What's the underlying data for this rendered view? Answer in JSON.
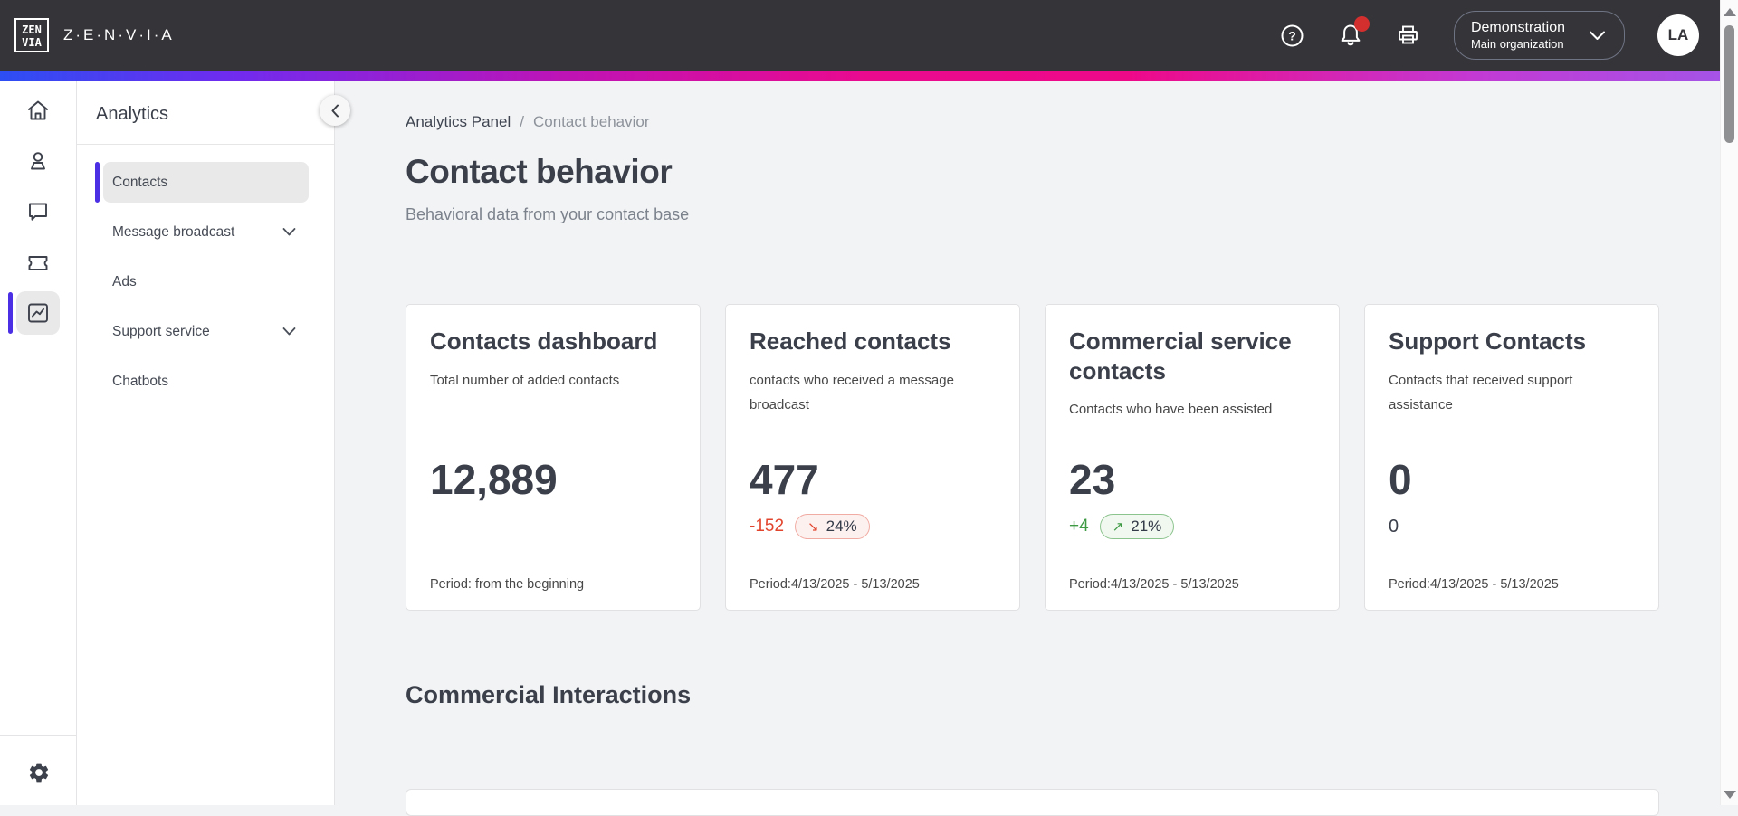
{
  "header": {
    "brand": "Z·E·N·V·I·A",
    "logo": {
      "line1": "ZEN",
      "line2": "VIA"
    },
    "org": {
      "name": "Demonstration",
      "sub": "Main organization"
    },
    "avatar": "LA"
  },
  "sidebar": {
    "panel": {
      "title": "Analytics",
      "items": [
        {
          "label": "Contacts",
          "active": true,
          "expandable": false
        },
        {
          "label": "Message broadcast",
          "active": false,
          "expandable": true
        },
        {
          "label": "Ads",
          "active": false,
          "expandable": false
        },
        {
          "label": "Support service",
          "active": false,
          "expandable": true
        },
        {
          "label": "Chatbots",
          "active": false,
          "expandable": false
        }
      ]
    }
  },
  "breadcrumb": {
    "parent": "Analytics Panel",
    "separator": "/",
    "current": "Contact behavior"
  },
  "page": {
    "title": "Contact behavior",
    "subtitle": "Behavioral data from your contact base"
  },
  "cards": [
    {
      "title": "Contacts dashboard",
      "description": "Total number of added contacts",
      "value": "12,889",
      "delta": null,
      "badge": null,
      "trend": null,
      "period": "Period: from the beginning"
    },
    {
      "title": "Reached contacts",
      "description": "contacts who received a message broadcast",
      "value": "477",
      "delta": "-152",
      "badge": "24%",
      "trend": "down",
      "period": "Period:4/13/2025 - 5/13/2025"
    },
    {
      "title": "Commercial service contacts",
      "description": "Contacts who have been assisted",
      "value": "23",
      "delta": "+4",
      "badge": "21%",
      "trend": "up",
      "period": "Period:4/13/2025 - 5/13/2025"
    },
    {
      "title": "Support Contacts",
      "description": "Contacts that received support assistance",
      "value": "0",
      "delta": "0",
      "badge": null,
      "trend": "none",
      "period": "Period:4/13/2025 - 5/13/2025"
    }
  ],
  "section": {
    "title": "Commercial Interactions"
  },
  "icons": {
    "help": "?",
    "trend_down": "↘",
    "trend_up": "↗"
  },
  "colors": {
    "header_bg": "#353439",
    "accent_indigo": "#4b2fe5",
    "gradient": [
      "#2c4ef2",
      "#6e2cf0",
      "#ea0a8e",
      "#a355e8"
    ],
    "negative_red": "#e2452e",
    "positive_green": "#3f9a44",
    "notification_red": "#d32f2f"
  }
}
